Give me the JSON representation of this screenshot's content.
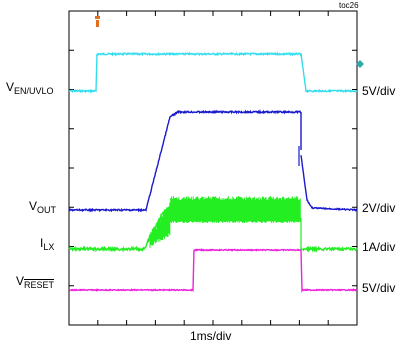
{
  "chart_data": {
    "type": "line",
    "tag": "toc26",
    "x_scale_label": "1ms/div",
    "x_divisions": 10,
    "y_divisions": 8,
    "grid": false,
    "channels": [
      {
        "name_main": "V",
        "name_sub": "EN/UVLO",
        "scale": "5V/div",
        "color": "#33ddee"
      },
      {
        "name_main": "V",
        "name_sub": "OUT",
        "scale": "2V/div",
        "color": "#1a1acc"
      },
      {
        "name_main": "I",
        "name_sub": "LX",
        "scale": "1A/div",
        "color": "#22ee22"
      },
      {
        "name_main": "V",
        "name_sub": "RESET",
        "scale": "5V/div",
        "color": "#ee22dd"
      }
    ]
  }
}
